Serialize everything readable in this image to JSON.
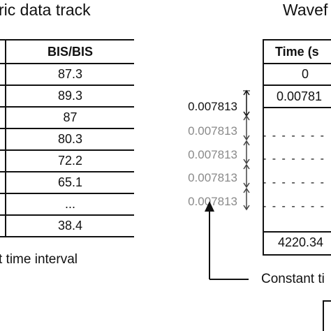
{
  "left_title": "ric data track",
  "right_title": "Wavef",
  "left_table": {
    "header": "BIS/BIS",
    "rows": [
      "87.3",
      "89.3",
      "87",
      "80.3",
      "72.2",
      "65.1",
      "...",
      "38.4"
    ]
  },
  "left_caption": "t time interval",
  "intervals": [
    "0.007813",
    "0.007813",
    "0.007813",
    "0.007813",
    "0.007813"
  ],
  "right_table": {
    "header": "Time (s",
    "row_first": "0",
    "row_second": "0.00781",
    "row_last": "4220.34"
  },
  "right_caption": "Constant ti"
}
